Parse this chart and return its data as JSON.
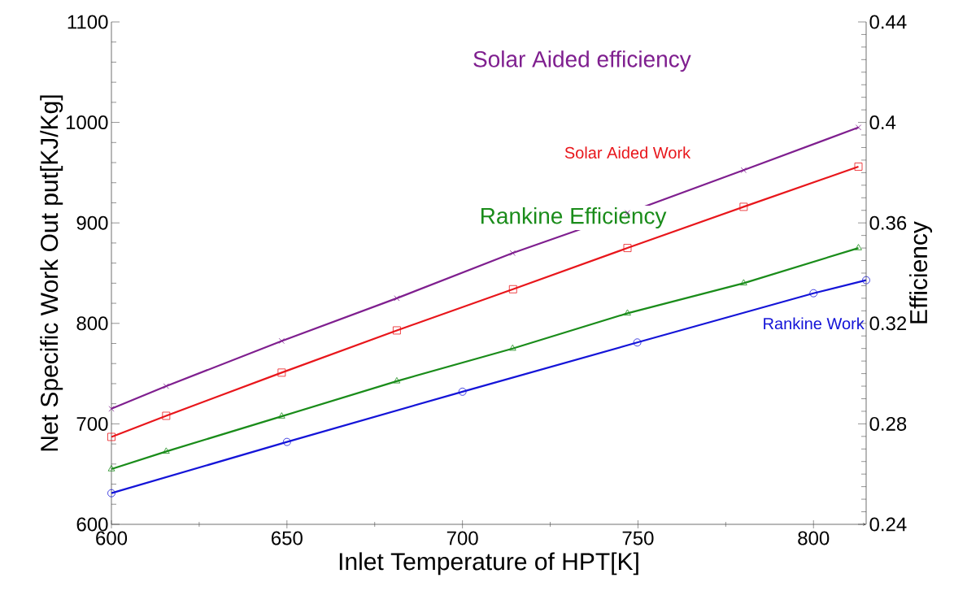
{
  "chart_data": {
    "type": "line",
    "xlabel": "Inlet Temperature of HPT[K]",
    "ylabel": "Net Specific Work Out put[KJ/Kg]",
    "y2label": "Efficiency",
    "xlim": [
      600,
      815
    ],
    "xticks": [
      600,
      650,
      700,
      750,
      800
    ],
    "ylim": [
      600,
      1100
    ],
    "yticks": [
      600,
      700,
      800,
      900,
      1000,
      1100
    ],
    "y2lim": [
      0.24,
      0.44
    ],
    "y2ticks": [
      0.24,
      0.28,
      0.32,
      0.36,
      0.4,
      0.44
    ],
    "grid": false,
    "line_style": "solid",
    "series": [
      {
        "name": "Solar Aided efficiency",
        "color": "#7f1f8f",
        "axis": "y2",
        "marker": "cross",
        "x": [
          600,
          615.6,
          648.5,
          681.3,
          714.3,
          747,
          780.1,
          812.8
        ],
        "values": [
          0.286,
          0.295,
          0.313,
          0.33,
          0.348,
          0.364,
          0.381,
          0.398
        ]
      },
      {
        "name": "Solar Aided Work",
        "color": "#e8161b",
        "marker": "square",
        "x": [
          600,
          615.6,
          648.5,
          681.3,
          714.4,
          747,
          780.1,
          812.8
        ],
        "values": [
          687,
          708,
          751,
          793,
          834,
          875,
          916,
          956
        ]
      },
      {
        "name": "Rankine Efficiency",
        "color": "#1a8c1a",
        "axis": "y2",
        "marker": "triangle",
        "x": [
          600,
          615.6,
          648.5,
          681.3,
          714.3,
          747,
          780.1,
          812.8
        ],
        "values": [
          0.262,
          0.269,
          0.283,
          0.297,
          0.31,
          0.324,
          0.336,
          0.35
        ]
      },
      {
        "name": "Rankine Work",
        "color": "#1414d8",
        "marker": "circle",
        "x": [
          600,
          650,
          700,
          749.8,
          800,
          815
        ],
        "values": [
          631,
          682,
          732,
          781,
          830,
          843
        ]
      }
    ]
  }
}
